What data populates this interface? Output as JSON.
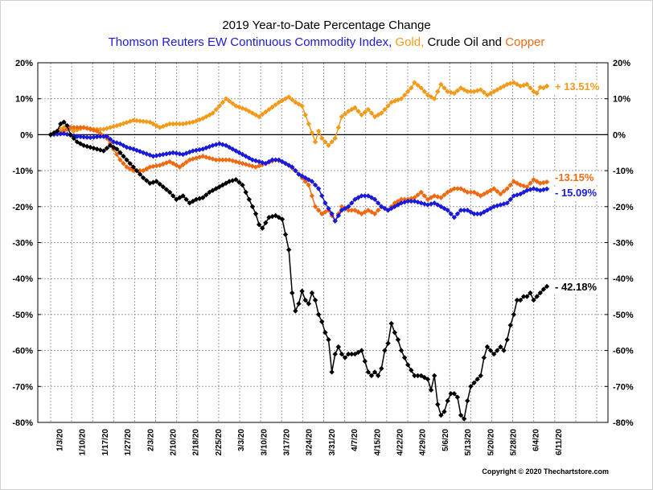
{
  "colors": {
    "index": "#1a1adb",
    "gold": "#f29a1a",
    "crude": "#000000",
    "copper": "#f06a12",
    "grid": "#9a9a9a"
  },
  "chart_data": {
    "type": "line",
    "title": "2019 Year-to-Date Percentage Change",
    "subtitle_parts": [
      {
        "text": "Thomson Reuters EW Continuous Commodity Index, ",
        "series": "index"
      },
      {
        "text": "Gold, ",
        "series": "gold"
      },
      {
        "text": "Crude Oil",
        "series": "crude"
      },
      {
        "text": " and ",
        "series": "crude"
      },
      {
        "text": "Copper",
        "series": "copper"
      }
    ],
    "ylim": [
      -80,
      20
    ],
    "yticks": [
      "20%",
      "10%",
      "0%",
      "-10%",
      "-20%",
      "-30%",
      "-40%",
      "-50%",
      "-60%",
      "-70%",
      "-80%"
    ],
    "x_count": 131,
    "x_labels": [
      "1/3/20",
      "1/10/20",
      "1/17/20",
      "1/27/20",
      "2/3/20",
      "2/10/20",
      "2/18/20",
      "2/25/20",
      "3/3/20",
      "3/10/20",
      "3/17/20",
      "3/24/20",
      "3/31/20",
      "4/7/20",
      "4/15/20",
      "4/22/20",
      "4/29/20",
      "5/6/20",
      "5/13/20",
      "5/20/20",
      "5/28/20",
      "6/4/20",
      "6/11/20"
    ],
    "series": [
      {
        "key": "gold",
        "name": "Gold",
        "end_label": "+ 13.51%",
        "keypoints": [
          [
            0,
            0
          ],
          [
            3,
            1.5
          ],
          [
            5,
            2.5
          ],
          [
            7,
            1
          ],
          [
            10,
            2
          ],
          [
            13,
            1.5
          ],
          [
            16,
            1.5
          ],
          [
            20,
            2.5
          ],
          [
            25,
            4
          ],
          [
            30,
            3.5
          ],
          [
            33,
            2
          ],
          [
            36,
            3
          ],
          [
            40,
            3
          ],
          [
            43,
            3.5
          ],
          [
            46,
            4.5
          ],
          [
            49,
            6
          ],
          [
            51,
            8
          ],
          [
            53,
            10
          ],
          [
            56,
            8
          ],
          [
            59,
            7
          ],
          [
            63,
            5
          ],
          [
            66,
            7
          ],
          [
            69,
            9
          ],
          [
            72,
            10.5
          ],
          [
            74,
            9
          ],
          [
            76,
            8
          ],
          [
            78,
            3
          ],
          [
            80,
            -2
          ],
          [
            81,
            1
          ],
          [
            82,
            -1
          ],
          [
            84,
            -3
          ],
          [
            86,
            -1
          ],
          [
            88,
            5
          ],
          [
            90,
            6.5
          ],
          [
            92,
            7.5
          ],
          [
            94,
            5.5
          ],
          [
            96,
            7
          ],
          [
            98,
            5
          ],
          [
            100,
            6
          ],
          [
            103,
            9
          ],
          [
            106,
            10
          ],
          [
            109,
            13
          ],
          [
            110,
            14.5
          ],
          [
            112,
            13
          ],
          [
            114,
            11
          ],
          [
            116,
            10
          ],
          [
            118,
            14
          ],
          [
            120,
            12
          ],
          [
            122,
            11.5
          ],
          [
            124,
            13
          ],
          [
            126,
            12
          ],
          [
            128,
            12
          ],
          [
            130,
            12.5
          ],
          [
            132,
            11
          ],
          [
            134,
            12
          ],
          [
            136,
            13
          ],
          [
            138,
            14
          ],
          [
            140,
            14.5
          ],
          [
            142,
            13.5
          ],
          [
            144,
            14
          ],
          [
            146,
            12
          ],
          [
            147,
            11.5
          ],
          [
            148,
            13.2
          ],
          [
            149,
            13
          ],
          [
            150,
            13.51
          ]
        ]
      },
      {
        "key": "copper",
        "name": "Copper",
        "end_label": "-13.15%",
        "keypoints": [
          [
            0,
            0
          ],
          [
            3,
            0.5
          ],
          [
            6,
            2
          ],
          [
            10,
            2
          ],
          [
            14,
            1
          ],
          [
            17,
            -1
          ],
          [
            19,
            -4
          ],
          [
            21,
            -7
          ],
          [
            23,
            -9
          ],
          [
            25,
            -10
          ],
          [
            28,
            -10
          ],
          [
            30,
            -9
          ],
          [
            33,
            -8.5
          ],
          [
            36,
            -7.5
          ],
          [
            39,
            -9
          ],
          [
            42,
            -7
          ],
          [
            46,
            -6
          ],
          [
            50,
            -7
          ],
          [
            54,
            -7
          ],
          [
            58,
            -8
          ],
          [
            62,
            -9
          ],
          [
            65,
            -8
          ],
          [
            68,
            -7
          ],
          [
            70,
            -7.5
          ],
          [
            72,
            -8.5
          ],
          [
            74,
            -10
          ],
          [
            76,
            -12
          ],
          [
            78,
            -14
          ],
          [
            80,
            -20
          ],
          [
            82,
            -22
          ],
          [
            84,
            -21
          ],
          [
            86,
            -24
          ],
          [
            88,
            -20
          ],
          [
            90,
            -21
          ],
          [
            92,
            -21
          ],
          [
            94,
            -22
          ],
          [
            96,
            -21
          ],
          [
            98,
            -22
          ],
          [
            100,
            -20
          ],
          [
            102,
            -21
          ],
          [
            104,
            -19
          ],
          [
            106,
            -18
          ],
          [
            108,
            -18
          ],
          [
            110,
            -17.5
          ],
          [
            112,
            -16
          ],
          [
            114,
            -18
          ],
          [
            116,
            -17
          ],
          [
            118,
            -17.5
          ],
          [
            120,
            -16
          ],
          [
            122,
            -15
          ],
          [
            124,
            -15
          ],
          [
            126,
            -16
          ],
          [
            128,
            -16
          ],
          [
            130,
            -17
          ],
          [
            132,
            -16
          ],
          [
            134,
            -15
          ],
          [
            136,
            -16.5
          ],
          [
            138,
            -15
          ],
          [
            140,
            -13
          ],
          [
            142,
            -14
          ],
          [
            144,
            -14.5
          ],
          [
            146,
            -12.5
          ],
          [
            148,
            -13.5
          ],
          [
            150,
            -13.15
          ]
        ]
      },
      {
        "key": "index",
        "name": "Thomson Reuters EW Continuous Commodity Index",
        "end_label": "- 15.09%",
        "keypoints": [
          [
            0,
            0
          ],
          [
            4,
            0.3
          ],
          [
            8,
            -0.5
          ],
          [
            12,
            -0.8
          ],
          [
            15,
            -0.5
          ],
          [
            17,
            -0.5
          ],
          [
            19,
            -2
          ],
          [
            21,
            -2.5
          ],
          [
            23,
            -3.5
          ],
          [
            25,
            -4
          ],
          [
            28,
            -5
          ],
          [
            31,
            -6
          ],
          [
            34,
            -5.5
          ],
          [
            37,
            -5
          ],
          [
            40,
            -5.5
          ],
          [
            43,
            -4.5
          ],
          [
            46,
            -4
          ],
          [
            49,
            -3
          ],
          [
            51,
            -2.5
          ],
          [
            53,
            -3
          ],
          [
            55,
            -4
          ],
          [
            57,
            -5
          ],
          [
            59,
            -6
          ],
          [
            61,
            -7
          ],
          [
            63,
            -7.5
          ],
          [
            65,
            -8
          ],
          [
            67,
            -7
          ],
          [
            69,
            -7
          ],
          [
            71,
            -8
          ],
          [
            73,
            -9
          ],
          [
            75,
            -11
          ],
          [
            77,
            -12
          ],
          [
            79,
            -13
          ],
          [
            81,
            -15
          ],
          [
            83,
            -19
          ],
          [
            85,
            -22
          ],
          [
            86,
            -24
          ],
          [
            88,
            -21
          ],
          [
            90,
            -20
          ],
          [
            92,
            -18
          ],
          [
            94,
            -17
          ],
          [
            96,
            -17
          ],
          [
            98,
            -18
          ],
          [
            100,
            -20
          ],
          [
            102,
            -21
          ],
          [
            104,
            -20
          ],
          [
            106,
            -19
          ],
          [
            108,
            -18.5
          ],
          [
            110,
            -18.5
          ],
          [
            112,
            -19
          ],
          [
            114,
            -19.5
          ],
          [
            116,
            -19
          ],
          [
            118,
            -20
          ],
          [
            120,
            -21
          ],
          [
            122,
            -23
          ],
          [
            124,
            -21
          ],
          [
            126,
            -21
          ],
          [
            128,
            -22
          ],
          [
            130,
            -22
          ],
          [
            132,
            -21
          ],
          [
            134,
            -20
          ],
          [
            136,
            -19.5
          ],
          [
            138,
            -19
          ],
          [
            140,
            -17
          ],
          [
            142,
            -16.5
          ],
          [
            144,
            -15.5
          ],
          [
            146,
            -15
          ],
          [
            148,
            -15.5
          ],
          [
            150,
            -15.09
          ]
        ]
      },
      {
        "key": "crude",
        "name": "Crude Oil",
        "end_label": "- 42.18%",
        "keypoints": [
          [
            0,
            0
          ],
          [
            2,
            1
          ],
          [
            3,
            3
          ],
          [
            4,
            3.5
          ],
          [
            5,
            2.5
          ],
          [
            6,
            0
          ],
          [
            7,
            -1
          ],
          [
            8,
            -2
          ],
          [
            9,
            -2.5
          ],
          [
            10,
            -3
          ],
          [
            12,
            -3.5
          ],
          [
            14,
            -4
          ],
          [
            16,
            -4.5
          ],
          [
            18,
            -3
          ],
          [
            20,
            -4
          ],
          [
            22,
            -6
          ],
          [
            24,
            -8
          ],
          [
            26,
            -10
          ],
          [
            28,
            -12
          ],
          [
            30,
            -13.5
          ],
          [
            32,
            -13
          ],
          [
            34,
            -14.5
          ],
          [
            36,
            -16
          ],
          [
            38,
            -18
          ],
          [
            40,
            -17
          ],
          [
            42,
            -19
          ],
          [
            44,
            -18
          ],
          [
            46,
            -17.5
          ],
          [
            48,
            -16
          ],
          [
            50,
            -15
          ],
          [
            52,
            -14
          ],
          [
            54,
            -13
          ],
          [
            56,
            -12.5
          ],
          [
            58,
            -14
          ],
          [
            60,
            -18
          ],
          [
            62,
            -22
          ],
          [
            63,
            -25
          ],
          [
            64,
            -26
          ],
          [
            66,
            -23
          ],
          [
            68,
            -22.5
          ],
          [
            70,
            -23.5
          ],
          [
            72,
            -32
          ],
          [
            73,
            -44
          ],
          [
            74,
            -49
          ],
          [
            75,
            -47
          ],
          [
            76,
            -43.5
          ],
          [
            77,
            -46
          ],
          [
            78,
            -47
          ],
          [
            79,
            -44
          ],
          [
            80,
            -46
          ],
          [
            81,
            -50
          ],
          [
            82,
            -52
          ],
          [
            83,
            -55
          ],
          [
            84,
            -57
          ],
          [
            85,
            -66
          ],
          [
            86,
            -61
          ],
          [
            87,
            -59
          ],
          [
            88,
            -61
          ],
          [
            89,
            -62
          ],
          [
            90,
            -61
          ],
          [
            92,
            -61
          ],
          [
            94,
            -60
          ],
          [
            95,
            -63
          ],
          [
            96,
            -66
          ],
          [
            97,
            -67
          ],
          [
            98,
            -66
          ],
          [
            99,
            -67
          ],
          [
            100,
            -65
          ],
          [
            101,
            -60
          ],
          [
            102,
            -58
          ],
          [
            103,
            -52.5
          ],
          [
            104,
            -55
          ],
          [
            105,
            -57
          ],
          [
            106,
            -60
          ],
          [
            107,
            -62
          ],
          [
            108,
            -64
          ],
          [
            110,
            -67
          ],
          [
            112,
            -67
          ],
          [
            114,
            -68
          ],
          [
            115,
            -71
          ],
          [
            116,
            -67
          ],
          [
            117,
            -75
          ],
          [
            118,
            -78
          ],
          [
            119,
            -77
          ],
          [
            120,
            -74
          ],
          [
            121,
            -72
          ],
          [
            122,
            -72
          ],
          [
            123,
            -73
          ],
          [
            124,
            -78
          ],
          [
            125,
            -79
          ],
          [
            126,
            -74
          ],
          [
            127,
            -70
          ],
          [
            128,
            -69
          ],
          [
            129,
            -68
          ],
          [
            130,
            -67
          ],
          [
            131,
            -62
          ],
          [
            132,
            -59
          ],
          [
            133,
            -60
          ],
          [
            134,
            -61
          ],
          [
            135,
            -60
          ],
          [
            136,
            -59
          ],
          [
            137,
            -60
          ],
          [
            138,
            -57
          ],
          [
            139,
            -53
          ],
          [
            140,
            -50
          ],
          [
            141,
            -46
          ],
          [
            142,
            -46
          ],
          [
            143,
            -45
          ],
          [
            144,
            -45
          ],
          [
            145,
            -44
          ],
          [
            146,
            -46
          ],
          [
            147,
            -45
          ],
          [
            148,
            -44
          ],
          [
            149,
            -43
          ],
          [
            150,
            -42.18
          ]
        ]
      }
    ],
    "copyright": "Copyright © 2020 Thechartstore.com"
  }
}
